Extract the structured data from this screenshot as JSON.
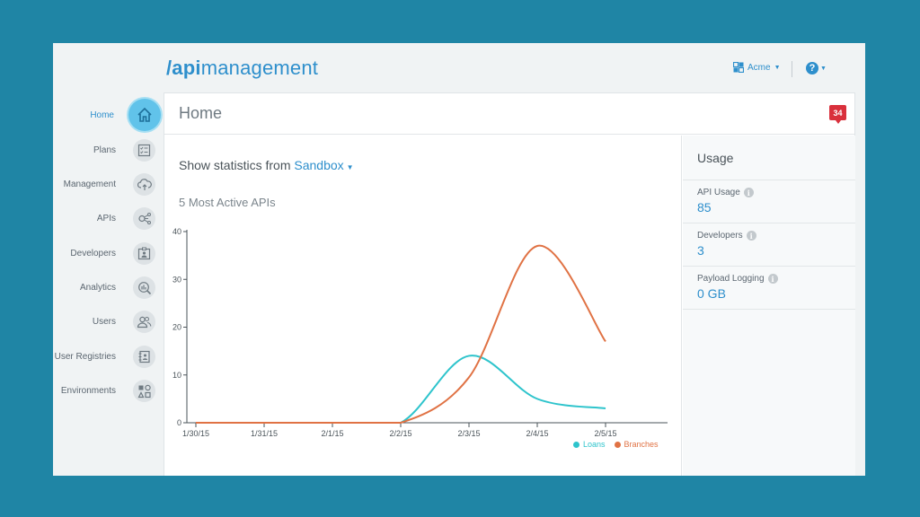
{
  "header": {
    "logo_prefix": "/api",
    "logo_suffix": "management",
    "org_name": "Acme",
    "help_label": "?"
  },
  "sidebar": {
    "items": [
      {
        "label": "Home",
        "icon": "home-icon",
        "active": true
      },
      {
        "label": "Plans",
        "icon": "checklist-icon"
      },
      {
        "label": "Management",
        "icon": "cloud-upload-icon"
      },
      {
        "label": "APIs",
        "icon": "share-icon"
      },
      {
        "label": "Developers",
        "icon": "id-badge-icon"
      },
      {
        "label": "Analytics",
        "icon": "analytics-icon"
      },
      {
        "label": "Users",
        "icon": "users-icon"
      },
      {
        "label": "User Registries",
        "icon": "address-book-icon"
      },
      {
        "label": "Environments",
        "icon": "environments-icon"
      }
    ]
  },
  "page": {
    "title": "Home",
    "notification_count": "34"
  },
  "stats": {
    "prefix": "Show statistics from",
    "environment": "Sandbox"
  },
  "chart_section": {
    "title": "5 Most Active APIs"
  },
  "usage": {
    "title": "Usage",
    "metrics": [
      {
        "label": "API Usage",
        "value": "85"
      },
      {
        "label": "Developers",
        "value": "3"
      },
      {
        "label": "Payload Logging",
        "value": "0 GB"
      }
    ]
  },
  "colors": {
    "accent": "#2e8fcc",
    "loans": "#2ec4cc",
    "branches": "#e07244",
    "badge": "#d9303c"
  },
  "chart_data": {
    "type": "line",
    "title": "5 Most Active APIs",
    "x": [
      "1/30/15",
      "1/31/15",
      "2/1/15",
      "2/2/15",
      "2/3/15",
      "2/4/15",
      "2/5/15"
    ],
    "yticks": [
      0,
      10,
      20,
      30,
      40
    ],
    "ylim": [
      0,
      40
    ],
    "grid": false,
    "legend": "bottom-right",
    "series": [
      {
        "name": "Loans",
        "values": [
          0,
          0,
          0,
          0,
          14,
          5,
          3
        ]
      },
      {
        "name": "Branches",
        "values": [
          0,
          0,
          0,
          0,
          9.5,
          37,
          17
        ]
      }
    ]
  }
}
